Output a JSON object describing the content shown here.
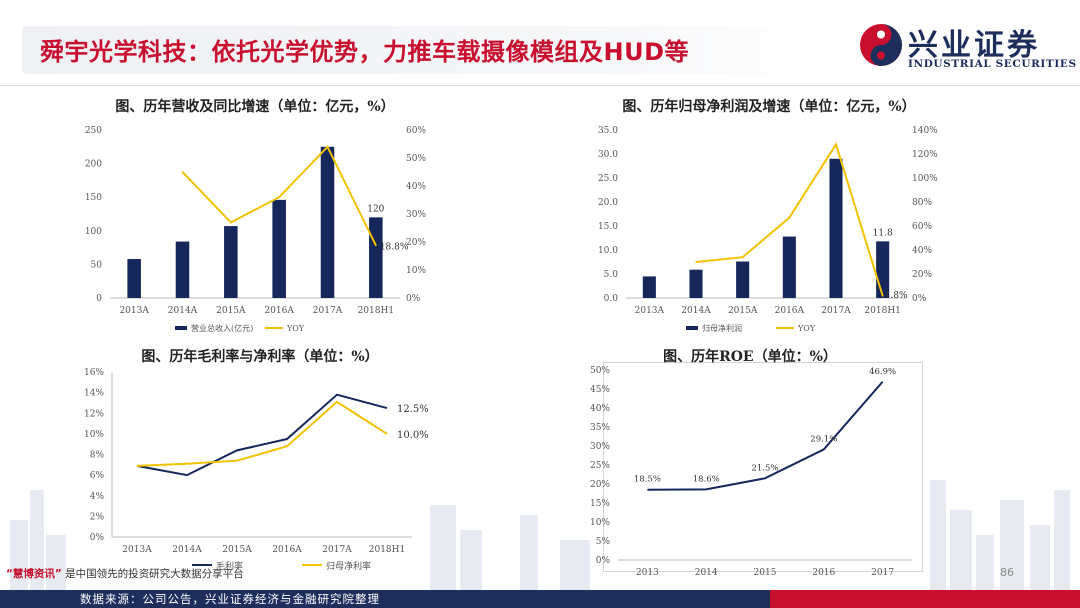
{
  "header": {
    "title": "舜宇光学科技：依托光学优势，力推车载摄像模组及HUD等",
    "brand_cn": "兴业证券",
    "brand_en": "INDUSTRIAL SECURITIES"
  },
  "footer": {
    "source": "数据来源：公司公告，兴业证券经济与金融研究院整理",
    "watermark_brand": "“慧博资讯”",
    "watermark_text": "是中国领先的投资研究大数据分享平台",
    "page_number": "86"
  },
  "colors": {
    "brand_red": "#c8102e",
    "brand_navy": "#1e2e5c",
    "bar_navy": "#16275c",
    "line_gold": "#f2c200"
  },
  "chart_data": [
    {
      "type": "bar",
      "title": "图、历年营收及同比增速（单位：亿元，%）",
      "categories": [
        "2013A",
        "2014A",
        "2015A",
        "2016A",
        "2017A",
        "2018H1"
      ],
      "series": [
        {
          "name": "营业总收入(亿元)",
          "type": "bar",
          "values": [
            58,
            84,
            107,
            146,
            225,
            120
          ],
          "axis": "left"
        },
        {
          "name": "YOY",
          "type": "line",
          "values": [
            null,
            45,
            27,
            36,
            54,
            18.8
          ],
          "axis": "right"
        }
      ],
      "left_axis": {
        "min": 0,
        "max": 250,
        "ticks": [
          "0",
          "50",
          "100",
          "150",
          "200",
          "250"
        ]
      },
      "right_axis": {
        "min": 0,
        "max": 60,
        "ticks": [
          "0%",
          "10%",
          "20%",
          "30%",
          "40%",
          "50%",
          "60%"
        ]
      },
      "annotations": [
        "120",
        "18.8%"
      ],
      "legend": "bottom"
    },
    {
      "type": "bar",
      "title": "图、历年归母净利润及增速（单位：亿元，%）",
      "categories": [
        "2013A",
        "2014A",
        "2015A",
        "2016A",
        "2017A",
        "2018H1"
      ],
      "series": [
        {
          "name": "归母净利润",
          "type": "bar",
          "values": [
            4.5,
            5.9,
            7.6,
            12.8,
            29.0,
            11.8
          ],
          "axis": "left"
        },
        {
          "name": "YOY",
          "type": "line",
          "values": [
            null,
            30,
            34,
            67,
            128,
            1.8
          ],
          "axis": "right"
        }
      ],
      "left_axis": {
        "min": 0,
        "max": 35,
        "ticks": [
          "0.0",
          "5.0",
          "10.0",
          "15.0",
          "20.0",
          "25.0",
          "30.0",
          "35.0"
        ]
      },
      "right_axis": {
        "min": 0,
        "max": 140,
        "ticks": [
          "0%",
          "20%",
          "40%",
          "60%",
          "80%",
          "100%",
          "120%",
          "140%"
        ]
      },
      "annotations": [
        "11.8",
        "1.8%"
      ],
      "legend": "bottom"
    },
    {
      "type": "line",
      "title": "图、历年毛利率与净利率（单位：%）",
      "categories": [
        "2013A",
        "2014A",
        "2015A",
        "2016A",
        "2017A",
        "2018H1"
      ],
      "series": [
        {
          "name": "毛利率",
          "values": [
            6.9,
            6.0,
            8.4,
            9.5,
            13.8,
            12.5
          ]
        },
        {
          "name": "归母净利率",
          "values": [
            6.9,
            7.1,
            7.4,
            8.8,
            13.1,
            10.0
          ]
        }
      ],
      "left_axis": {
        "min": 0,
        "max": 16,
        "ticks": [
          "0%",
          "2%",
          "4%",
          "6%",
          "8%",
          "10%",
          "12%",
          "14%",
          "16%"
        ]
      },
      "annotations": [
        "12.5%",
        "10.0%"
      ],
      "legend": "bottom"
    },
    {
      "type": "line",
      "title": "图、历年ROE（单位：%）",
      "categories": [
        "2013",
        "2014",
        "2015",
        "2016",
        "2017"
      ],
      "series": [
        {
          "name": "ROE",
          "values": [
            18.5,
            18.6,
            21.5,
            29.1,
            46.9
          ],
          "labels": [
            "18.5%",
            "18.6%",
            "21.5%",
            "29.1%",
            "46.9%"
          ]
        }
      ],
      "left_axis": {
        "min": 0,
        "max": 50,
        "ticks": [
          "0%",
          "5%",
          "10%",
          "15%",
          "20%",
          "25%",
          "30%",
          "35%",
          "40%",
          "45%",
          "50%"
        ]
      },
      "legend": "none"
    }
  ]
}
